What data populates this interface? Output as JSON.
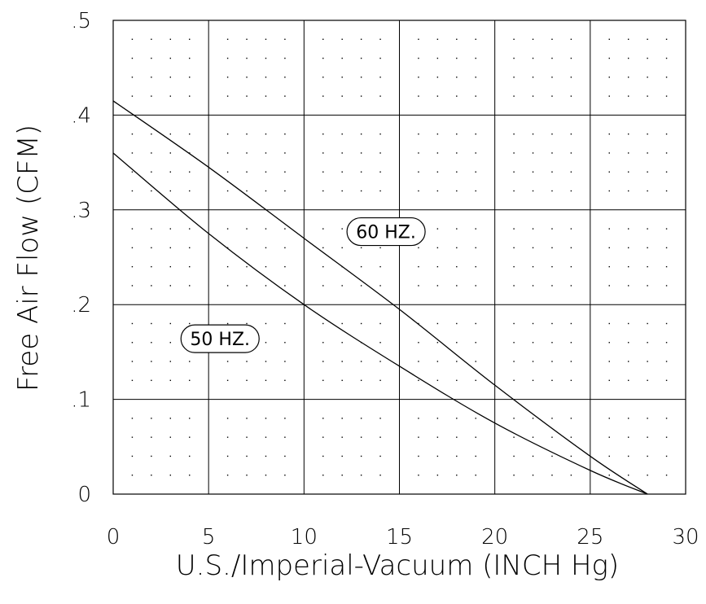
{
  "chart_data": {
    "type": "line",
    "title": "",
    "xlabel": "U.S./Imperial-Vacuum (INCH Hg)",
    "ylabel": "Free Air Flow (CFM)",
    "xlim": [
      0,
      30
    ],
    "ylim": [
      0,
      0.5
    ],
    "xticks": [
      0,
      5,
      10,
      15,
      20,
      25,
      30
    ],
    "xtick_labels": [
      "0",
      "5",
      "10",
      "15",
      "20",
      "25",
      "30"
    ],
    "yticks": [
      0,
      0.1,
      0.2,
      0.3,
      0.4,
      0.5
    ],
    "ytick_labels": [
      "0",
      ".1",
      ".2",
      ".3",
      ".4",
      ".5"
    ],
    "grid": true,
    "minor_grid_dotted": true,
    "series": [
      {
        "name": "60 HZ.",
        "x": [
          0,
          5,
          10,
          15,
          20,
          25,
          28
        ],
        "y": [
          0.415,
          0.345,
          0.27,
          0.195,
          0.115,
          0.04,
          0.0
        ]
      },
      {
        "name": "50 HZ.",
        "x": [
          0,
          5,
          10,
          15,
          20,
          25,
          28
        ],
        "y": [
          0.36,
          0.275,
          0.2,
          0.135,
          0.075,
          0.025,
          0.0
        ]
      }
    ],
    "annotations": [
      {
        "text": "60 HZ.",
        "series": "60 HZ.",
        "x": 14.3,
        "y": 0.277
      },
      {
        "text": "50 HZ.",
        "series": "50 HZ.",
        "x": 5.6,
        "y": 0.164
      }
    ]
  }
}
